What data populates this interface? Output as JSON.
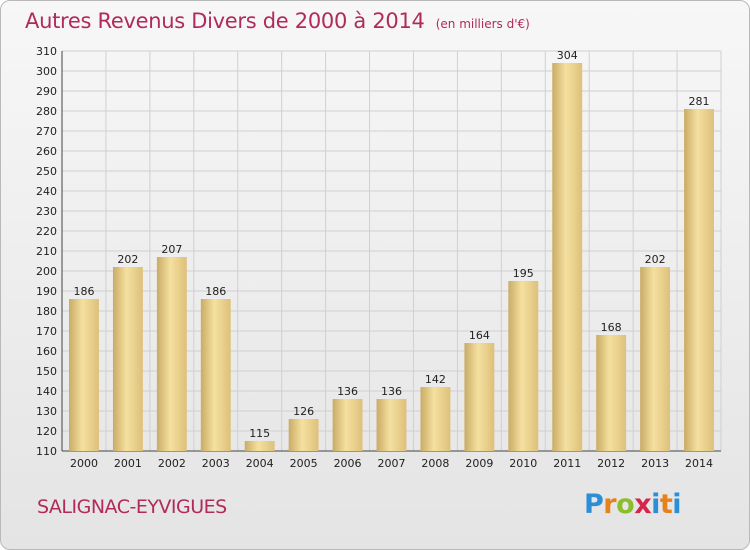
{
  "header": {
    "title": "Autres Revenus Divers de 2000 à 2014",
    "unit_note": "(en milliers d'€)"
  },
  "footer": {
    "town": "SALIGNAC-EYVIGUES",
    "logo": "Proxiti"
  },
  "colors": {
    "title": "#b12a5b",
    "bar_light": "#f5e0a0",
    "bar_dark": "#c9ab65",
    "grid": "#d0d0d0"
  },
  "chart_data": {
    "type": "bar",
    "title": "Autres Revenus Divers de 2000 à 2014",
    "xlabel": "",
    "ylabel": "",
    "ylim": [
      110,
      310
    ],
    "ytick_step": 10,
    "grid": true,
    "categories": [
      "2000",
      "2001",
      "2002",
      "2003",
      "2004",
      "2005",
      "2006",
      "2007",
      "2008",
      "2009",
      "2010",
      "2011",
      "2012",
      "2013",
      "2014"
    ],
    "values": [
      186,
      202,
      207,
      186,
      115,
      126,
      136,
      136,
      142,
      164,
      195,
      304,
      168,
      202,
      281
    ]
  }
}
